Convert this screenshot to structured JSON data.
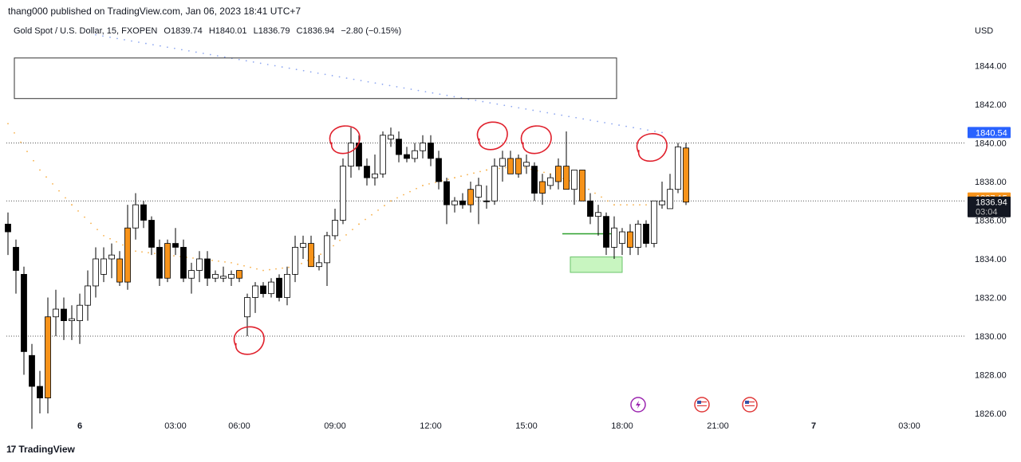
{
  "header": {
    "publish_line": "thang000 published on TradingView.com, Jan 06, 2023 18:41 UTC+7"
  },
  "legend": {
    "symbol": "Gold Spot / U.S. Dollar, 15, FXOPEN",
    "open": "O1839.74",
    "high": "H1840.01",
    "low": "L1836.79",
    "close": "C1836.94",
    "change": "−2.80 (−0.15%)"
  },
  "footer": {
    "brand": "TradingView",
    "brand_mark": "17"
  },
  "colors": {
    "bull_body": "#ffffff",
    "bear_body": "#000000",
    "orange_body": "#f7931a",
    "wick": "#000000",
    "dotted_grey": "#555555",
    "trend_dots": "#8fa8f0",
    "ema_dots": "#f7b04a",
    "red_marks": "#e0202c",
    "zone_green": "#c8f5c0",
    "price_blue": "#2962ff",
    "price_orange": "#f7931a",
    "price_black": "#131722"
  },
  "chart_data": {
    "type": "candlestick",
    "symbol": "Gold Spot / U.S. Dollar",
    "interval": "15",
    "y_axis_unit": "USD",
    "ylim": [
      1825.2,
      1845.6
    ],
    "y_ticks": [
      "1844.00",
      "1842.00",
      "1840.00",
      "1838.00",
      "1836.00",
      "1834.00",
      "1832.00",
      "1830.00",
      "1828.00",
      "1826.00"
    ],
    "x_ticks": [
      {
        "label": "6",
        "slot": 9,
        "bold": true
      },
      {
        "label": "03:00",
        "slot": 21,
        "bold": false
      },
      {
        "label": "06:00",
        "slot": 29,
        "bold": false
      },
      {
        "label": "09:00",
        "slot": 41,
        "bold": false
      },
      {
        "label": "12:00",
        "slot": 53,
        "bold": false
      },
      {
        "label": "15:00",
        "slot": 65,
        "bold": false
      },
      {
        "label": "18:00",
        "slot": 77,
        "bold": false
      },
      {
        "label": "21:00",
        "slot": 89,
        "bold": false
      },
      {
        "label": "7",
        "slot": 101,
        "bold": true
      },
      {
        "label": "03:00",
        "slot": 113,
        "bold": false
      }
    ],
    "price_labels": [
      {
        "value": 1840.54,
        "text": "1840.54",
        "color": "#2962ff"
      },
      {
        "value": 1837.15,
        "text": "1837.15",
        "color": "#f7931a"
      },
      {
        "value": 1836.94,
        "text": "1836.94",
        "sub": "03:04",
        "color": "#131722"
      }
    ],
    "horizontal_levels": [
      1840.0,
      1837.0,
      1830.0
    ],
    "candles": [
      {
        "o": 1835.8,
        "h": 1836.4,
        "l": 1834.2,
        "c": 1835.4,
        "s": "bear"
      },
      {
        "o": 1834.6,
        "h": 1835.0,
        "l": 1832.2,
        "c": 1833.4,
        "s": "bear"
      },
      {
        "o": 1833.2,
        "h": 1833.6,
        "l": 1828.0,
        "c": 1829.2,
        "s": "bear"
      },
      {
        "o": 1829.0,
        "h": 1829.6,
        "l": 1825.2,
        "c": 1827.4,
        "s": "bear"
      },
      {
        "o": 1827.4,
        "h": 1828.2,
        "l": 1826.0,
        "c": 1826.8,
        "s": "bear"
      },
      {
        "o": 1826.8,
        "h": 1832.0,
        "l": 1826.0,
        "c": 1831.0,
        "s": "orange"
      },
      {
        "o": 1831.0,
        "h": 1832.4,
        "l": 1830.0,
        "c": 1831.4,
        "s": "bull"
      },
      {
        "o": 1831.4,
        "h": 1832.0,
        "l": 1829.8,
        "c": 1830.8,
        "s": "bear"
      },
      {
        "o": 1830.8,
        "h": 1831.6,
        "l": 1829.8,
        "c": 1830.9,
        "s": "bull"
      },
      {
        "o": 1830.8,
        "h": 1832.2,
        "l": 1829.6,
        "c": 1831.6,
        "s": "bull"
      },
      {
        "o": 1831.6,
        "h": 1833.4,
        "l": 1830.8,
        "c": 1832.6,
        "s": "bull"
      },
      {
        "o": 1832.6,
        "h": 1834.6,
        "l": 1832.0,
        "c": 1834.0,
        "s": "bull"
      },
      {
        "o": 1833.2,
        "h": 1834.6,
        "l": 1832.8,
        "c": 1834.0,
        "s": "bull"
      },
      {
        "o": 1834.0,
        "h": 1834.8,
        "l": 1833.0,
        "c": 1834.2,
        "s": "bull"
      },
      {
        "o": 1834.0,
        "h": 1834.4,
        "l": 1832.6,
        "c": 1832.8,
        "s": "orange"
      },
      {
        "o": 1832.8,
        "h": 1836.8,
        "l": 1832.4,
        "c": 1835.6,
        "s": "orange"
      },
      {
        "o": 1835.6,
        "h": 1837.4,
        "l": 1835.0,
        "c": 1836.8,
        "s": "bull"
      },
      {
        "o": 1836.8,
        "h": 1837.0,
        "l": 1835.6,
        "c": 1836.0,
        "s": "bear"
      },
      {
        "o": 1836.0,
        "h": 1836.2,
        "l": 1834.2,
        "c": 1834.6,
        "s": "bear"
      },
      {
        "o": 1834.6,
        "h": 1835.0,
        "l": 1832.6,
        "c": 1833.0,
        "s": "bear"
      },
      {
        "o": 1833.0,
        "h": 1835.0,
        "l": 1832.8,
        "c": 1834.8,
        "s": "orange"
      },
      {
        "o": 1834.8,
        "h": 1835.6,
        "l": 1834.2,
        "c": 1834.6,
        "s": "bear"
      },
      {
        "o": 1834.6,
        "h": 1835.0,
        "l": 1832.8,
        "c": 1833.0,
        "s": "bear"
      },
      {
        "o": 1833.0,
        "h": 1833.8,
        "l": 1832.2,
        "c": 1833.4,
        "s": "bull"
      },
      {
        "o": 1833.4,
        "h": 1834.4,
        "l": 1832.8,
        "c": 1834.0,
        "s": "bull"
      },
      {
        "o": 1834.0,
        "h": 1834.4,
        "l": 1832.6,
        "c": 1833.0,
        "s": "bear"
      },
      {
        "o": 1833.0,
        "h": 1833.4,
        "l": 1832.8,
        "c": 1833.2,
        "s": "bull"
      },
      {
        "o": 1833.1,
        "h": 1833.6,
        "l": 1832.8,
        "c": 1833.0,
        "s": "bull"
      },
      {
        "o": 1833.0,
        "h": 1833.4,
        "l": 1832.6,
        "c": 1833.2,
        "s": "bull"
      },
      {
        "o": 1833.4,
        "h": 1833.4,
        "l": 1832.8,
        "c": 1833.0,
        "s": "orange"
      },
      {
        "o": 1831.0,
        "h": 1832.2,
        "l": 1830.0,
        "c": 1832.0,
        "s": "bull"
      },
      {
        "o": 1832.0,
        "h": 1832.8,
        "l": 1831.2,
        "c": 1832.6,
        "s": "bull"
      },
      {
        "o": 1832.6,
        "h": 1832.8,
        "l": 1832.0,
        "c": 1832.2,
        "s": "bear"
      },
      {
        "o": 1832.2,
        "h": 1833.0,
        "l": 1832.0,
        "c": 1832.8,
        "s": "bull"
      },
      {
        "o": 1833.0,
        "h": 1833.2,
        "l": 1831.8,
        "c": 1832.0,
        "s": "bear"
      },
      {
        "o": 1832.0,
        "h": 1833.6,
        "l": 1831.6,
        "c": 1833.2,
        "s": "bull"
      },
      {
        "o": 1833.2,
        "h": 1835.2,
        "l": 1832.8,
        "c": 1834.6,
        "s": "bull"
      },
      {
        "o": 1834.6,
        "h": 1835.2,
        "l": 1834.0,
        "c": 1834.8,
        "s": "bull"
      },
      {
        "o": 1834.8,
        "h": 1835.2,
        "l": 1833.6,
        "c": 1833.6,
        "s": "orange"
      },
      {
        "o": 1833.6,
        "h": 1834.2,
        "l": 1833.4,
        "c": 1833.8,
        "s": "bull"
      },
      {
        "o": 1833.8,
        "h": 1835.4,
        "l": 1832.6,
        "c": 1835.2,
        "s": "bull"
      },
      {
        "o": 1835.2,
        "h": 1836.6,
        "l": 1835.0,
        "c": 1836.0,
        "s": "bull"
      },
      {
        "o": 1836.0,
        "h": 1839.2,
        "l": 1835.8,
        "c": 1838.8,
        "s": "bull"
      },
      {
        "o": 1838.8,
        "h": 1840.8,
        "l": 1838.2,
        "c": 1840.0,
        "s": "bull"
      },
      {
        "o": 1840.0,
        "h": 1840.4,
        "l": 1838.6,
        "c": 1838.8,
        "s": "bear"
      },
      {
        "o": 1838.8,
        "h": 1839.2,
        "l": 1837.8,
        "c": 1838.2,
        "s": "bear"
      },
      {
        "o": 1838.2,
        "h": 1839.4,
        "l": 1837.8,
        "c": 1838.4,
        "s": "bull"
      },
      {
        "o": 1838.4,
        "h": 1840.6,
        "l": 1838.2,
        "c": 1840.4,
        "s": "bull"
      },
      {
        "o": 1840.4,
        "h": 1840.8,
        "l": 1839.8,
        "c": 1840.2,
        "s": "bull"
      },
      {
        "o": 1840.2,
        "h": 1840.6,
        "l": 1839.0,
        "c": 1839.4,
        "s": "bear"
      },
      {
        "o": 1839.4,
        "h": 1839.8,
        "l": 1839.0,
        "c": 1839.2,
        "s": "bear"
      },
      {
        "o": 1839.2,
        "h": 1840.0,
        "l": 1839.0,
        "c": 1839.6,
        "s": "bull"
      },
      {
        "o": 1839.6,
        "h": 1840.4,
        "l": 1839.2,
        "c": 1840.0,
        "s": "bull"
      },
      {
        "o": 1840.0,
        "h": 1840.4,
        "l": 1838.8,
        "c": 1839.2,
        "s": "bear"
      },
      {
        "o": 1839.2,
        "h": 1839.6,
        "l": 1837.6,
        "c": 1838.0,
        "s": "bear"
      },
      {
        "o": 1838.0,
        "h": 1838.2,
        "l": 1835.8,
        "c": 1836.8,
        "s": "bear"
      },
      {
        "o": 1836.8,
        "h": 1837.2,
        "l": 1836.4,
        "c": 1837.0,
        "s": "bull"
      },
      {
        "o": 1837.0,
        "h": 1837.4,
        "l": 1836.6,
        "c": 1836.8,
        "s": "bear"
      },
      {
        "o": 1836.8,
        "h": 1838.0,
        "l": 1836.4,
        "c": 1837.6,
        "s": "orange"
      },
      {
        "o": 1837.2,
        "h": 1838.2,
        "l": 1835.8,
        "c": 1837.8,
        "s": "bull"
      },
      {
        "o": 1837.0,
        "h": 1837.8,
        "l": 1836.6,
        "c": 1837.0,
        "s": "bear"
      },
      {
        "o": 1837.0,
        "h": 1839.2,
        "l": 1836.8,
        "c": 1838.8,
        "s": "bull"
      },
      {
        "o": 1838.8,
        "h": 1839.6,
        "l": 1838.0,
        "c": 1839.2,
        "s": "bull"
      },
      {
        "o": 1839.2,
        "h": 1839.6,
        "l": 1838.4,
        "c": 1838.4,
        "s": "orange"
      },
      {
        "o": 1838.4,
        "h": 1839.4,
        "l": 1838.2,
        "c": 1839.2,
        "s": "orange"
      },
      {
        "o": 1839.0,
        "h": 1839.4,
        "l": 1838.4,
        "c": 1838.8,
        "s": "bull"
      },
      {
        "o": 1838.8,
        "h": 1839.0,
        "l": 1837.0,
        "c": 1837.4,
        "s": "bear"
      },
      {
        "o": 1837.4,
        "h": 1838.4,
        "l": 1836.8,
        "c": 1838.0,
        "s": "orange"
      },
      {
        "o": 1837.8,
        "h": 1838.4,
        "l": 1837.6,
        "c": 1838.2,
        "s": "bull"
      },
      {
        "o": 1838.0,
        "h": 1839.2,
        "l": 1837.6,
        "c": 1838.8,
        "s": "orange"
      },
      {
        "o": 1838.8,
        "h": 1840.6,
        "l": 1837.6,
        "c": 1837.6,
        "s": "orange"
      },
      {
        "o": 1837.6,
        "h": 1838.6,
        "l": 1836.8,
        "c": 1838.6,
        "s": "bull"
      },
      {
        "o": 1838.6,
        "h": 1838.6,
        "l": 1837.0,
        "c": 1837.0,
        "s": "orange"
      },
      {
        "o": 1837.0,
        "h": 1837.4,
        "l": 1835.8,
        "c": 1836.2,
        "s": "bear"
      },
      {
        "o": 1836.4,
        "h": 1836.8,
        "l": 1835.2,
        "c": 1836.2,
        "s": "bull"
      },
      {
        "o": 1836.2,
        "h": 1836.4,
        "l": 1834.2,
        "c": 1834.6,
        "s": "bear"
      },
      {
        "o": 1834.6,
        "h": 1836.2,
        "l": 1834.0,
        "c": 1835.6,
        "s": "bull"
      },
      {
        "o": 1834.8,
        "h": 1835.6,
        "l": 1834.2,
        "c": 1835.4,
        "s": "bull"
      },
      {
        "o": 1835.4,
        "h": 1835.8,
        "l": 1834.2,
        "c": 1834.6,
        "s": "orange"
      },
      {
        "o": 1834.6,
        "h": 1836.0,
        "l": 1834.2,
        "c": 1835.8,
        "s": "bull"
      },
      {
        "o": 1835.8,
        "h": 1836.0,
        "l": 1834.6,
        "c": 1834.8,
        "s": "bear"
      },
      {
        "o": 1834.8,
        "h": 1837.0,
        "l": 1834.6,
        "c": 1837.0,
        "s": "bull"
      },
      {
        "o": 1836.8,
        "h": 1838.0,
        "l": 1836.6,
        "c": 1837.0,
        "s": "bull"
      },
      {
        "o": 1836.6,
        "h": 1838.4,
        "l": 1836.6,
        "c": 1837.6,
        "s": "bull"
      },
      {
        "o": 1837.6,
        "h": 1840.0,
        "l": 1837.4,
        "c": 1839.8,
        "s": "bull"
      },
      {
        "o": 1839.74,
        "h": 1840.01,
        "l": 1836.79,
        "c": 1836.94,
        "s": "orange"
      }
    ],
    "trend_line_dots": {
      "from": {
        "slot": 11,
        "value": 1845.6
      },
      "to": {
        "slot": 82,
        "value": 1840.54
      }
    },
    "ema_dots": [
      {
        "slot": 0,
        "value": 1841.0
      },
      {
        "slot": 4,
        "value": 1838.6
      },
      {
        "slot": 8,
        "value": 1836.8
      },
      {
        "slot": 12,
        "value": 1835.2
      },
      {
        "slot": 16,
        "value": 1834.4
      },
      {
        "slot": 20,
        "value": 1834.2
      },
      {
        "slot": 24,
        "value": 1834.0
      },
      {
        "slot": 28,
        "value": 1833.8
      },
      {
        "slot": 32,
        "value": 1833.4
      },
      {
        "slot": 36,
        "value": 1833.6
      },
      {
        "slot": 40,
        "value": 1834.4
      },
      {
        "slot": 44,
        "value": 1835.8
      },
      {
        "slot": 48,
        "value": 1837.0
      },
      {
        "slot": 52,
        "value": 1837.8
      },
      {
        "slot": 56,
        "value": 1838.2
      },
      {
        "slot": 60,
        "value": 1838.6
      },
      {
        "slot": 64,
        "value": 1838.8
      },
      {
        "slot": 68,
        "value": 1838.4
      },
      {
        "slot": 72,
        "value": 1837.8
      },
      {
        "slot": 76,
        "value": 1836.8
      },
      {
        "slot": 80,
        "value": 1836.8
      }
    ],
    "box": {
      "slot_from": 1,
      "slot_to": 76.5,
      "high": 1844.4,
      "low": 1842.3
    },
    "green_zone": {
      "slot_from": 70.5,
      "slot_to": 77,
      "high": 1834.1,
      "low": 1833.3
    },
    "green_line": {
      "slot_from": 69.5,
      "slot_to": 76,
      "value": 1835.3
    },
    "red_circles": [
      {
        "slot": 42,
        "value": 1840.2
      },
      {
        "slot": 30,
        "value": 1829.8
      },
      {
        "slot": 60.5,
        "value": 1840.4
      },
      {
        "slot": 66,
        "value": 1840.2
      },
      {
        "slot": 80.5,
        "value": 1839.8
      }
    ],
    "event_icons": [
      {
        "slot": 79,
        "kind": "lightning-icon"
      },
      {
        "slot": 87,
        "kind": "us-flag-icon"
      },
      {
        "slot": 93,
        "kind": "us-flag-icon"
      }
    ]
  }
}
